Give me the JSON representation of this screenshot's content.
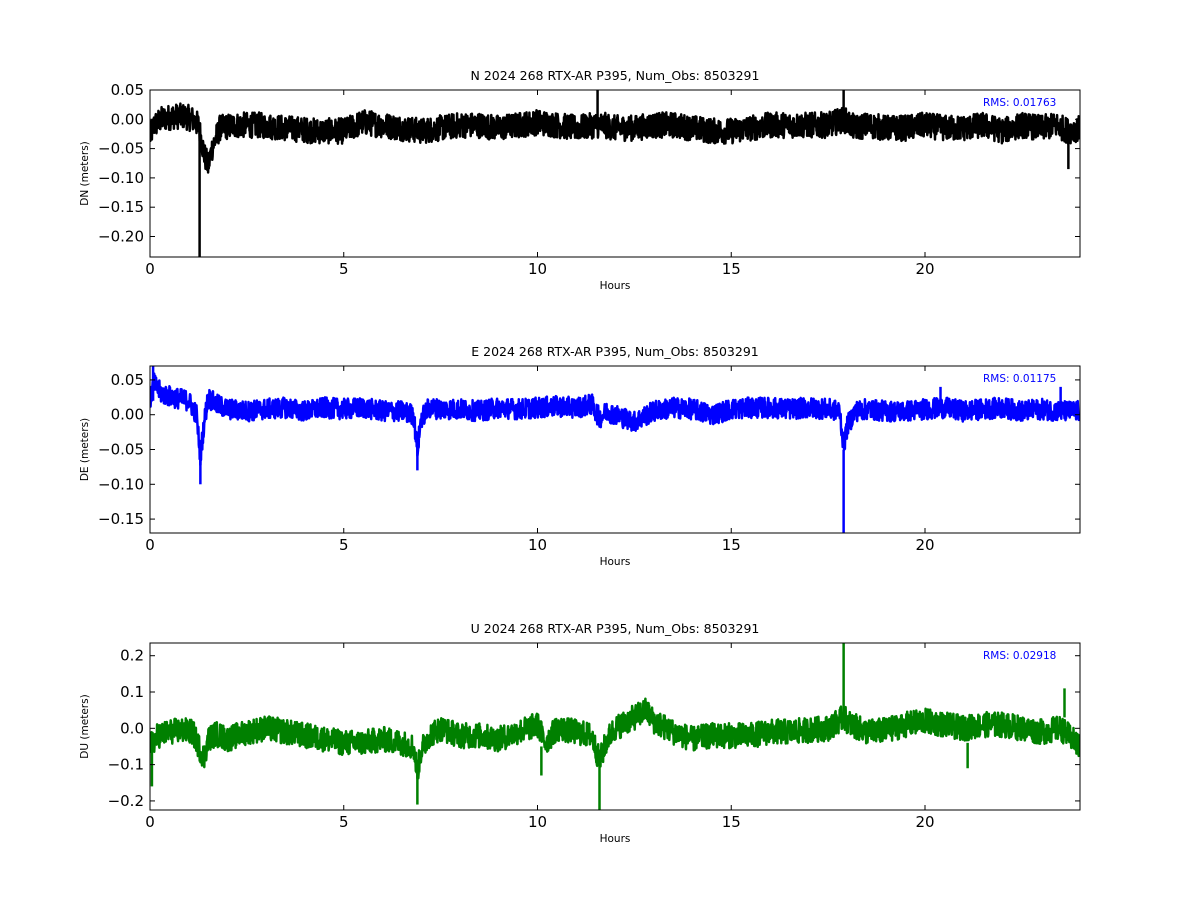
{
  "chart_data": [
    {
      "type": "line",
      "title": "N 2024 268 RTX-AR  P395, Num_Obs: 8503291",
      "xlabel": "Hours",
      "ylabel": "DN (meters)",
      "xlim": [
        0,
        24
      ],
      "ylim": [
        -0.235,
        0.05
      ],
      "xticks": [
        0,
        5,
        10,
        15,
        20
      ],
      "yticks": [
        0.05,
        0.0,
        -0.05,
        -0.1,
        -0.15,
        -0.2
      ],
      "ytick_labels": [
        "0.05",
        "0.00",
        "−0.05",
        "−0.10",
        "−0.15",
        "−0.20"
      ],
      "color": "#000000",
      "grid": false,
      "rms_label": "RMS:  0.01763",
      "series": [
        {
          "band_half_width": 0.022,
          "x": [
            0,
            0.1,
            0.3,
            0.6,
            0.9,
            1.1,
            1.25,
            1.4,
            1.5,
            1.6,
            1.8,
            2.2,
            2.8,
            3.5,
            4.3,
            5.0,
            5.5,
            6.0,
            6.5,
            7.0,
            7.5,
            8.0,
            8.5,
            9.0,
            9.5,
            10.0,
            10.5,
            11.0,
            11.5,
            11.7,
            12.0,
            12.5,
            13.0,
            13.5,
            14.0,
            14.5,
            15.0,
            15.5,
            16.0,
            16.5,
            17.0,
            17.5,
            17.9,
            18.2,
            18.5,
            19.0,
            19.5,
            20.0,
            20.5,
            21.0,
            21.5,
            22.0,
            22.5,
            23.0,
            23.4,
            23.7,
            24.0
          ],
          "y": [
            -0.03,
            -0.01,
            0.0,
            0.005,
            0.005,
            0.0,
            -0.01,
            -0.06,
            -0.08,
            -0.05,
            -0.015,
            -0.01,
            -0.01,
            -0.015,
            -0.02,
            -0.02,
            -0.005,
            -0.01,
            -0.015,
            -0.02,
            -0.015,
            -0.01,
            -0.01,
            -0.015,
            -0.01,
            -0.005,
            -0.01,
            -0.015,
            -0.01,
            -0.01,
            -0.015,
            -0.015,
            -0.01,
            -0.01,
            -0.015,
            -0.02,
            -0.02,
            -0.015,
            -0.01,
            -0.01,
            -0.01,
            -0.01,
            0.0,
            -0.015,
            -0.01,
            -0.015,
            -0.015,
            -0.01,
            -0.015,
            -0.015,
            -0.01,
            -0.02,
            -0.01,
            -0.015,
            -0.01,
            -0.02,
            -0.015
          ]
        }
      ],
      "spikes": [
        {
          "x": 1.28,
          "y0": -0.01,
          "y1": -0.235
        },
        {
          "x": 11.55,
          "y0": 0.0,
          "y1": 0.05
        },
        {
          "x": 17.9,
          "y0": 0.0,
          "y1": 0.05
        },
        {
          "x": 23.7,
          "y0": -0.03,
          "y1": -0.085
        }
      ]
    },
    {
      "type": "line",
      "title": "E 2024 268 RTX-AR  P395, Num_Obs: 8503291",
      "xlabel": "Hours",
      "ylabel": "DE (meters)",
      "xlim": [
        0,
        24
      ],
      "ylim": [
        -0.17,
        0.07
      ],
      "xticks": [
        0,
        5,
        10,
        15,
        20
      ],
      "yticks": [
        0.05,
        0.0,
        -0.05,
        -0.1,
        -0.15
      ],
      "ytick_labels": [
        "0.05",
        "0.00",
        "−0.05",
        "−0.10",
        "−0.15"
      ],
      "color": "#0000ff",
      "grid": false,
      "rms_label": "RMS:  0.01175",
      "series": [
        {
          "band_half_width": 0.015,
          "x": [
            0,
            0.1,
            0.3,
            0.6,
            1.0,
            1.2,
            1.3,
            1.4,
            1.5,
            1.7,
            2.0,
            2.5,
            3.0,
            3.5,
            4.0,
            4.5,
            5.0,
            5.5,
            6.0,
            6.5,
            6.8,
            6.9,
            7.0,
            7.2,
            7.5,
            8.0,
            8.5,
            9.0,
            9.5,
            10.0,
            10.5,
            11.0,
            11.4,
            11.6,
            11.8,
            12.0,
            12.5,
            13.0,
            13.5,
            14.0,
            14.5,
            15.0,
            15.5,
            16.0,
            16.5,
            17.0,
            17.5,
            17.8,
            17.9,
            18.0,
            18.2,
            18.5,
            19.0,
            19.5,
            20.0,
            20.5,
            21.0,
            21.5,
            22.0,
            22.5,
            23.0,
            23.5,
            24.0
          ],
          "y": [
            0.02,
            0.045,
            0.03,
            0.025,
            0.02,
            0.0,
            -0.06,
            -0.01,
            0.025,
            0.015,
            0.008,
            0.005,
            0.008,
            0.01,
            0.005,
            0.01,
            0.008,
            0.01,
            0.005,
            0.005,
            0.0,
            -0.05,
            -0.005,
            0.01,
            0.008,
            0.008,
            0.005,
            0.01,
            0.008,
            0.01,
            0.012,
            0.01,
            0.015,
            -0.005,
            0.005,
            0.0,
            -0.01,
            0.005,
            0.01,
            0.008,
            0.0,
            0.008,
            0.01,
            0.01,
            0.008,
            0.01,
            0.008,
            0.005,
            -0.045,
            -0.015,
            0.005,
            0.008,
            0.005,
            0.005,
            0.008,
            0.01,
            0.005,
            0.008,
            0.01,
            0.005,
            0.008,
            0.005,
            0.005
          ]
        }
      ],
      "spikes": [
        {
          "x": 0.08,
          "y0": 0.02,
          "y1": 0.07
        },
        {
          "x": 1.3,
          "y0": -0.05,
          "y1": -0.1
        },
        {
          "x": 6.9,
          "y0": -0.05,
          "y1": -0.08
        },
        {
          "x": 17.9,
          "y0": -0.05,
          "y1": -0.17
        },
        {
          "x": 20.4,
          "y0": 0.01,
          "y1": 0.04
        },
        {
          "x": 23.5,
          "y0": 0.01,
          "y1": 0.04
        }
      ]
    },
    {
      "type": "line",
      "title": "U 2024 268 RTX-AR  P395, Num_Obs: 8503291",
      "xlabel": "Hours",
      "ylabel": "DU (meters)",
      "xlim": [
        0,
        24
      ],
      "ylim": [
        -0.225,
        0.235
      ],
      "xticks": [
        0,
        5,
        10,
        15,
        20
      ],
      "yticks": [
        0.2,
        0.1,
        0.0,
        -0.1,
        -0.2
      ],
      "ytick_labels": [
        "0.2",
        "0.1",
        "0.0",
        "−0.1",
        "−0.2"
      ],
      "color": "#008000",
      "grid": false,
      "rms_label": "RMS:  0.02918",
      "series": [
        {
          "band_half_width": 0.035,
          "x": [
            0,
            0.2,
            0.5,
            0.8,
            1.1,
            1.3,
            1.4,
            1.5,
            1.7,
            2.0,
            2.5,
            3.0,
            3.5,
            4.0,
            4.5,
            5.0,
            5.5,
            6.0,
            6.5,
            6.8,
            6.9,
            7.0,
            7.2,
            7.5,
            8.0,
            8.5,
            9.0,
            9.5,
            10.0,
            10.2,
            10.5,
            11.0,
            11.4,
            11.6,
            11.8,
            12.0,
            12.5,
            12.8,
            13.0,
            13.5,
            14.0,
            14.5,
            15.0,
            15.5,
            16.0,
            16.5,
            17.0,
            17.5,
            17.9,
            18.1,
            18.5,
            19.0,
            19.5,
            20.0,
            20.5,
            21.0,
            21.5,
            22.0,
            22.5,
            23.0,
            23.5,
            24.0
          ],
          "y": [
            -0.05,
            -0.02,
            -0.01,
            -0.005,
            -0.01,
            -0.06,
            -0.08,
            -0.03,
            -0.015,
            -0.03,
            -0.01,
            0.0,
            -0.01,
            -0.02,
            -0.03,
            -0.04,
            -0.04,
            -0.03,
            -0.04,
            -0.05,
            -0.12,
            -0.06,
            -0.02,
            0.0,
            -0.02,
            -0.02,
            -0.03,
            -0.01,
            0.01,
            -0.04,
            0.0,
            -0.01,
            -0.02,
            -0.09,
            -0.03,
            0.0,
            0.03,
            0.05,
            0.02,
            -0.01,
            -0.03,
            -0.02,
            -0.02,
            -0.02,
            -0.01,
            -0.01,
            -0.005,
            0.0,
            0.03,
            0.01,
            -0.01,
            -0.005,
            0.01,
            0.02,
            0.01,
            0.0,
            0.01,
            0.01,
            0.0,
            -0.01,
            0.0,
            -0.05
          ]
        }
      ],
      "spikes": [
        {
          "x": 0.05,
          "y0": -0.05,
          "y1": -0.16
        },
        {
          "x": 6.9,
          "y0": -0.1,
          "y1": -0.21
        },
        {
          "x": 10.1,
          "y0": -0.05,
          "y1": -0.13
        },
        {
          "x": 11.6,
          "y0": -0.1,
          "y1": -0.225
        },
        {
          "x": 17.9,
          "y0": 0.03,
          "y1": 0.235
        },
        {
          "x": 21.1,
          "y0": -0.04,
          "y1": -0.11
        },
        {
          "x": 23.6,
          "y0": 0.03,
          "y1": 0.11
        }
      ]
    }
  ]
}
